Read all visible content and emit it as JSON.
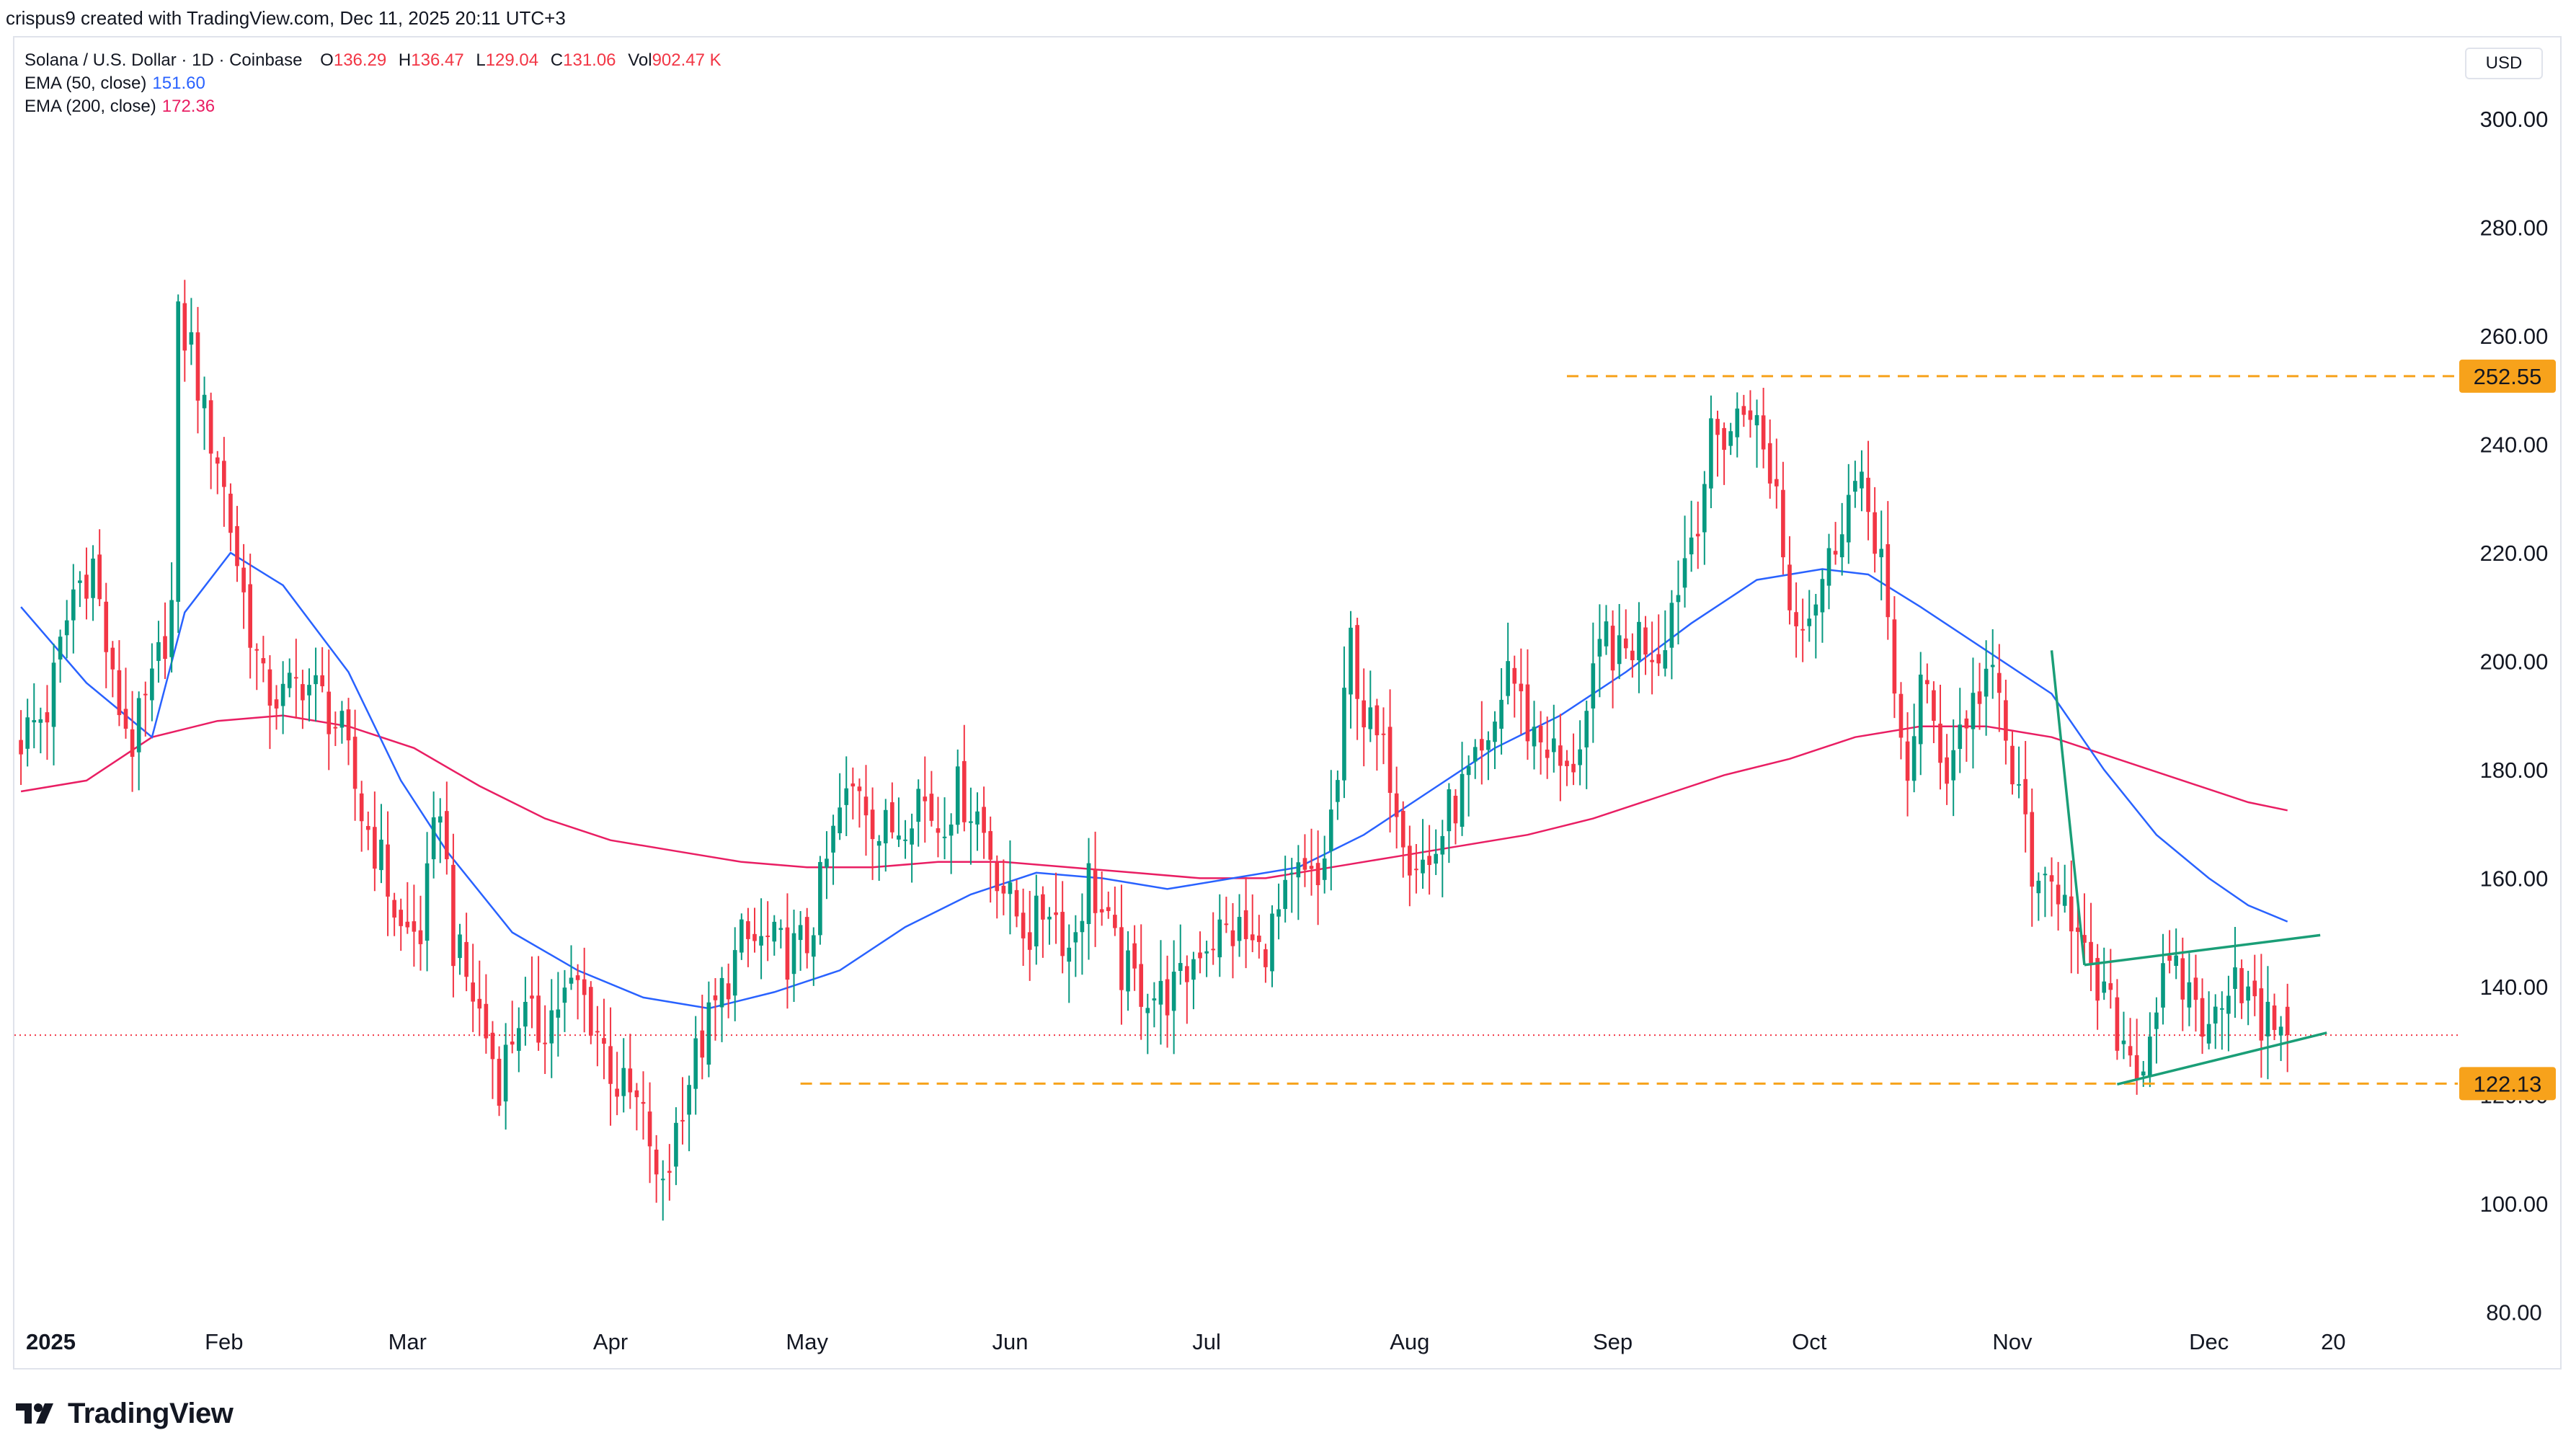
{
  "header": {
    "created_by": "crispus9 created with TradingView.com, Dec 11, 2025 20:11 UTC+3"
  },
  "legend": {
    "symbol": "Solana / U.S. Dollar · 1D · Coinbase",
    "open_label": "O",
    "open": "136.29",
    "high_label": "H",
    "high": "136.47",
    "low_label": "L",
    "low": "129.04",
    "close_label": "C",
    "close": "131.06",
    "vol_label": "Vol",
    "vol": "902.47 K",
    "ema50_label": "EMA (50, close)",
    "ema50_value": "151.60",
    "ema200_label": "EMA (200, close)",
    "ema200_value": "172.36"
  },
  "currency": "USD",
  "brand": {
    "name": "TradingView"
  },
  "colors": {
    "up": "#089981",
    "down": "#f23645",
    "ema50": "#2962ff",
    "ema200": "#e91e63",
    "level": "#f7a21b",
    "pattern": "#1a9e77",
    "last_price_line": "#f23645"
  },
  "chart_data": {
    "type": "candlestick",
    "title": "Solana / U.S. Dollar · 1D · Coinbase",
    "ylim": [
      75,
      315
    ],
    "y_ticks": [
      {
        "value": 300,
        "label": "300.00"
      },
      {
        "value": 280,
        "label": "280.00"
      },
      {
        "value": 260,
        "label": "260.00"
      },
      {
        "value": 240,
        "label": "240.00"
      },
      {
        "value": 220,
        "label": "220.00"
      },
      {
        "value": 200,
        "label": "200.00"
      },
      {
        "value": 180,
        "label": "180.00"
      },
      {
        "value": 160,
        "label": "160.00"
      },
      {
        "value": 140,
        "label": "140.00"
      },
      {
        "value": 120,
        "label": "120.00"
      },
      {
        "value": 100,
        "label": "100.00"
      },
      {
        "value": 80,
        "label": "80.00"
      }
    ],
    "x_ticks": [
      {
        "day": 0,
        "label": "2025",
        "bold": true
      },
      {
        "day": 31,
        "label": "Feb"
      },
      {
        "day": 59,
        "label": "Mar"
      },
      {
        "day": 90,
        "label": "Apr"
      },
      {
        "day": 120,
        "label": "May"
      },
      {
        "day": 151,
        "label": "Jun"
      },
      {
        "day": 181,
        "label": "Jul"
      },
      {
        "day": 212,
        "label": "Aug"
      },
      {
        "day": 243,
        "label": "Sep"
      },
      {
        "day": 273,
        "label": "Oct"
      },
      {
        "day": 304,
        "label": "Nov"
      },
      {
        "day": 334,
        "label": "Dec"
      },
      {
        "day": 353,
        "label": "20"
      }
    ],
    "x_range_days": [
      -1,
      372
    ],
    "close_series": [
      [
        0,
        186
      ],
      [
        4,
        191
      ],
      [
        8,
        213
      ],
      [
        11,
        218
      ],
      [
        14,
        195
      ],
      [
        17,
        185
      ],
      [
        20,
        195
      ],
      [
        23,
        210
      ],
      [
        24,
        262
      ],
      [
        26,
        258
      ],
      [
        28,
        245
      ],
      [
        30,
        238
      ],
      [
        32,
        225
      ],
      [
        34,
        212
      ],
      [
        37,
        195
      ],
      [
        40,
        193
      ],
      [
        43,
        197
      ],
      [
        46,
        193
      ],
      [
        49,
        186
      ],
      [
        52,
        172
      ],
      [
        55,
        163
      ],
      [
        58,
        150
      ],
      [
        61,
        150
      ],
      [
        64,
        175
      ],
      [
        66,
        148
      ],
      [
        70,
        135
      ],
      [
        73,
        123
      ],
      [
        76,
        135
      ],
      [
        79,
        132
      ],
      [
        82,
        137
      ],
      [
        85,
        140
      ],
      [
        88,
        132
      ],
      [
        91,
        122
      ],
      [
        94,
        118
      ],
      [
        96,
        112
      ],
      [
        97,
        102
      ],
      [
        99,
        108
      ],
      [
        101,
        120
      ],
      [
        104,
        130
      ],
      [
        107,
        139
      ],
      [
        110,
        148
      ],
      [
        114,
        148
      ],
      [
        117,
        146
      ],
      [
        120,
        148
      ],
      [
        122,
        158
      ],
      [
        125,
        172
      ],
      [
        128,
        178
      ],
      [
        131,
        168
      ],
      [
        134,
        170
      ],
      [
        137,
        176
      ],
      [
        140,
        170
      ],
      [
        143,
        176
      ],
      [
        146,
        172
      ],
      [
        148,
        165
      ],
      [
        151,
        155
      ],
      [
        154,
        150
      ],
      [
        157,
        156
      ],
      [
        160,
        147
      ],
      [
        163,
        160
      ],
      [
        166,
        150
      ],
      [
        168,
        143
      ],
      [
        171,
        140
      ],
      [
        174,
        138
      ],
      [
        177,
        140
      ],
      [
        180,
        148
      ],
      [
        183,
        150
      ],
      [
        186,
        150
      ],
      [
        189,
        146
      ],
      [
        192,
        153
      ],
      [
        195,
        160
      ],
      [
        198,
        158
      ],
      [
        201,
        178
      ],
      [
        203,
        204
      ],
      [
        205,
        190
      ],
      [
        207,
        185
      ],
      [
        209,
        180
      ],
      [
        212,
        165
      ],
      [
        215,
        162
      ],
      [
        218,
        172
      ],
      [
        221,
        178
      ],
      [
        224,
        182
      ],
      [
        227,
        200
      ],
      [
        230,
        188
      ],
      [
        233,
        185
      ],
      [
        236,
        178
      ],
      [
        239,
        190
      ],
      [
        242,
        205
      ],
      [
        244,
        200
      ],
      [
        247,
        205
      ],
      [
        250,
        202
      ],
      [
        253,
        215
      ],
      [
        256,
        228
      ],
      [
        258,
        240
      ],
      [
        261,
        243
      ],
      [
        264,
        248
      ],
      [
        266,
        238
      ],
      [
        268,
        232
      ],
      [
        270,
        210
      ],
      [
        273,
        210
      ],
      [
        276,
        218
      ],
      [
        278,
        228
      ],
      [
        280,
        232
      ],
      [
        282,
        228
      ],
      [
        284,
        220
      ],
      [
        286,
        190
      ],
      [
        288,
        180
      ],
      [
        290,
        196
      ],
      [
        292,
        188
      ],
      [
        294,
        180
      ],
      [
        296,
        188
      ],
      [
        298,
        192
      ],
      [
        300,
        198
      ],
      [
        302,
        192
      ],
      [
        304,
        178
      ],
      [
        306,
        170
      ],
      [
        308,
        155
      ],
      [
        310,
        158
      ],
      [
        312,
        160
      ],
      [
        314,
        148
      ],
      [
        316,
        140
      ],
      [
        318,
        138
      ],
      [
        320,
        132
      ],
      [
        322,
        128
      ],
      [
        324,
        126
      ],
      [
        326,
        138
      ],
      [
        328,
        142
      ],
      [
        330,
        140
      ],
      [
        332,
        138
      ],
      [
        334,
        130
      ],
      [
        336,
        140
      ],
      [
        338,
        144
      ],
      [
        340,
        138
      ],
      [
        342,
        132
      ],
      [
        344,
        134
      ],
      [
        345,
        136
      ],
      [
        346,
        131
      ]
    ],
    "ema50": [
      [
        0,
        210
      ],
      [
        10,
        196
      ],
      [
        20,
        186
      ],
      [
        25,
        209
      ],
      [
        32,
        220
      ],
      [
        40,
        214
      ],
      [
        50,
        198
      ],
      [
        58,
        178
      ],
      [
        65,
        165
      ],
      [
        75,
        150
      ],
      [
        85,
        143
      ],
      [
        95,
        138
      ],
      [
        105,
        136
      ],
      [
        115,
        139
      ],
      [
        125,
        143
      ],
      [
        135,
        151
      ],
      [
        145,
        157
      ],
      [
        155,
        161
      ],
      [
        165,
        160
      ],
      [
        175,
        158
      ],
      [
        185,
        160
      ],
      [
        195,
        162
      ],
      [
        205,
        168
      ],
      [
        215,
        176
      ],
      [
        225,
        184
      ],
      [
        235,
        190
      ],
      [
        245,
        198
      ],
      [
        255,
        207
      ],
      [
        265,
        215
      ],
      [
        275,
        217
      ],
      [
        282,
        216
      ],
      [
        290,
        210
      ],
      [
        300,
        202
      ],
      [
        310,
        194
      ],
      [
        318,
        180
      ],
      [
        326,
        168
      ],
      [
        334,
        160
      ],
      [
        340,
        155
      ],
      [
        346,
        152
      ]
    ],
    "ema200": [
      [
        0,
        176
      ],
      [
        10,
        178
      ],
      [
        20,
        186
      ],
      [
        30,
        189
      ],
      [
        40,
        190
      ],
      [
        50,
        188
      ],
      [
        60,
        184
      ],
      [
        70,
        177
      ],
      [
        80,
        171
      ],
      [
        90,
        167
      ],
      [
        100,
        165
      ],
      [
        110,
        163
      ],
      [
        120,
        162
      ],
      [
        130,
        162
      ],
      [
        140,
        163
      ],
      [
        150,
        163
      ],
      [
        160,
        162
      ],
      [
        170,
        161
      ],
      [
        180,
        160
      ],
      [
        190,
        160
      ],
      [
        200,
        162
      ],
      [
        210,
        164
      ],
      [
        220,
        166
      ],
      [
        230,
        168
      ],
      [
        240,
        171
      ],
      [
        250,
        175
      ],
      [
        260,
        179
      ],
      [
        270,
        182
      ],
      [
        280,
        186
      ],
      [
        290,
        188
      ],
      [
        300,
        188
      ],
      [
        310,
        186
      ],
      [
        320,
        182
      ],
      [
        330,
        178
      ],
      [
        340,
        174
      ],
      [
        346,
        172.5
      ]
    ],
    "levels": [
      {
        "value": 252.55,
        "label": "252.55",
        "from_day": 236
      },
      {
        "value": 122.13,
        "label": "122.13",
        "from_day": 119
      }
    ],
    "pattern_lines": [
      {
        "from": [
          310,
          202
        ],
        "to": [
          315,
          144
        ]
      },
      {
        "from": [
          315,
          144
        ],
        "to": [
          351,
          149.5
        ]
      },
      {
        "from": [
          320,
          122
        ],
        "to": [
          352,
          131.5
        ]
      }
    ],
    "last_price": 131.06
  }
}
